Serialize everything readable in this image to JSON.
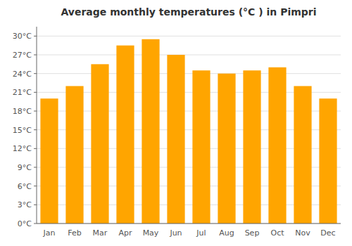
{
  "chart_data": {
    "type": "bar",
    "title": "Average monthly temperatures (°C ) in Pimpri",
    "categories": [
      "Jan",
      "Feb",
      "Mar",
      "Apr",
      "May",
      "Jun",
      "Jul",
      "Aug",
      "Sep",
      "Oct",
      "Nov",
      "Dec"
    ],
    "values": [
      20.0,
      22.0,
      25.5,
      28.5,
      29.5,
      27.0,
      24.5,
      24.0,
      24.5,
      25.0,
      22.0,
      20.0
    ],
    "color": "#FFA500",
    "ylim": [
      0,
      31.5
    ],
    "yticks": [
      {
        "value": 0,
        "label": "0°C"
      },
      {
        "value": 3,
        "label": "3°C"
      },
      {
        "value": 6,
        "label": "6°C"
      },
      {
        "value": 9,
        "label": "9°C"
      },
      {
        "value": 12,
        "label": "12°C"
      },
      {
        "value": 15,
        "label": "15°C"
      },
      {
        "value": 18,
        "label": "18°C"
      },
      {
        "value": 21,
        "label": "21°C"
      },
      {
        "value": 24,
        "label": "24°C"
      },
      {
        "value": 27,
        "label": "27°C"
      },
      {
        "value": 30,
        "label": "30°C"
      }
    ],
    "grid": true
  }
}
